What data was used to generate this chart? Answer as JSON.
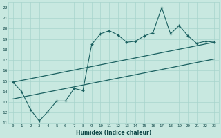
{
  "xlabel": "Humidex (Indice chaleur)",
  "bg_color": "#c8e8e0",
  "grid_color": "#a8d4cc",
  "line_color": "#1a6060",
  "xlim": [
    -0.5,
    23.5
  ],
  "ylim": [
    11,
    22.5
  ],
  "xticks": [
    0,
    1,
    2,
    3,
    4,
    5,
    6,
    7,
    8,
    9,
    10,
    11,
    12,
    13,
    14,
    15,
    16,
    17,
    18,
    19,
    20,
    21,
    22,
    23
  ],
  "yticks": [
    11,
    12,
    13,
    14,
    15,
    16,
    17,
    18,
    19,
    20,
    21,
    22
  ],
  "main_x": [
    0,
    1,
    2,
    3,
    4,
    5,
    6,
    7,
    8,
    9,
    10,
    11,
    12,
    13,
    14,
    15,
    16,
    17,
    18,
    19,
    20,
    21,
    22,
    23
  ],
  "main_y": [
    14.9,
    14.0,
    12.3,
    11.2,
    12.1,
    13.1,
    13.1,
    14.3,
    14.1,
    18.5,
    19.5,
    19.8,
    19.4,
    18.7,
    18.8,
    19.3,
    19.6,
    22.0,
    19.5,
    20.3,
    19.3,
    18.6,
    18.8,
    18.7
  ],
  "line1_x": [
    0,
    23
  ],
  "line1_y": [
    14.9,
    18.7
  ],
  "line2_x": [
    0,
    23
  ],
  "line2_y": [
    13.3,
    17.1
  ]
}
